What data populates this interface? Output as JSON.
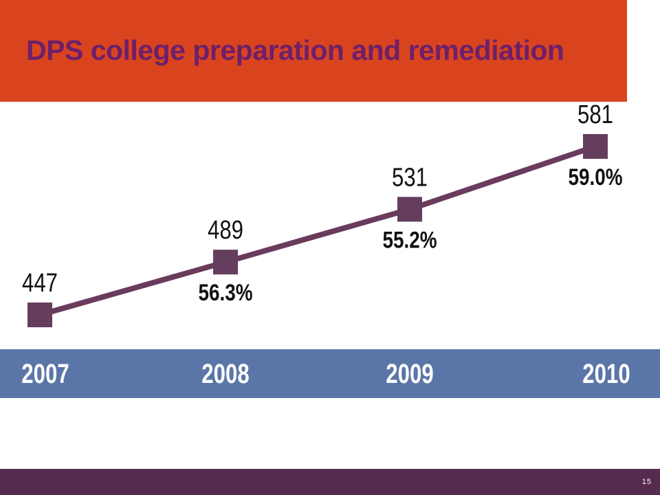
{
  "slide": {
    "title": "DPS college preparation and remediation",
    "page_number": "15"
  },
  "colors": {
    "title_band": "#d9441f",
    "title_text": "#6e1f6a",
    "line": "#6a3b5c",
    "marker": "#653e5e",
    "axis_band": "#5a76a8",
    "footer": "#562b4f"
  },
  "chart_data": {
    "type": "line",
    "title": "",
    "categories": [
      "2007",
      "2008",
      "2009",
      "2010"
    ],
    "series": [
      {
        "values": [
          447,
          489,
          531,
          581
        ],
        "labels": [
          "447",
          "489",
          "531",
          "581"
        ]
      }
    ],
    "secondary_labels": [
      "",
      "56.3%",
      "55.2%",
      "59.0%"
    ],
    "xlabel": "",
    "ylabel": "",
    "ylim": [
      400,
      620
    ],
    "grid": false,
    "legend": "none"
  }
}
